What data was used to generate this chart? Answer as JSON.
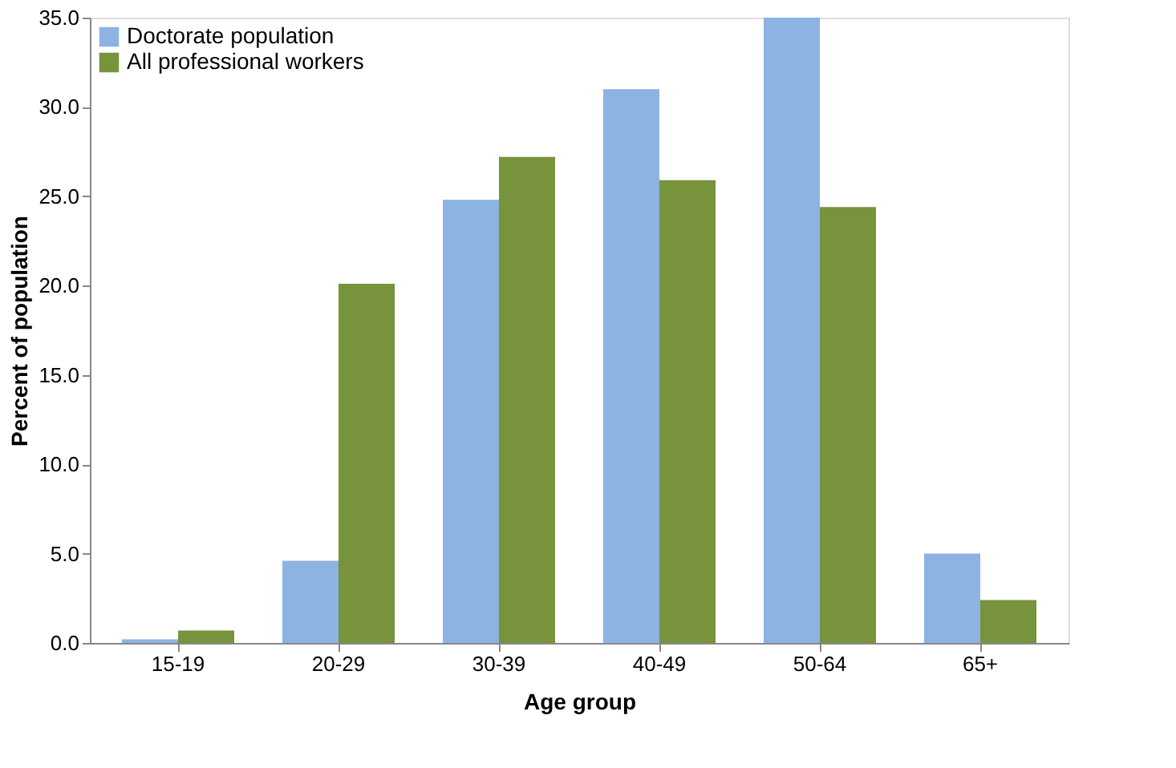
{
  "chart_data": {
    "type": "bar",
    "xlabel": "Age group",
    "ylabel": "Percent of population",
    "categories": [
      "15-19",
      "20-29",
      "30-39",
      "40-49",
      "50-64",
      "65+"
    ],
    "series": [
      {
        "name": "Doctorate population",
        "color": "#8db3e2",
        "values": [
          0.2,
          4.6,
          24.8,
          31.0,
          35.0,
          5.0
        ]
      },
      {
        "name": "All professional workers",
        "color": "#77933c",
        "values": [
          0.7,
          20.1,
          27.2,
          25.9,
          24.4,
          2.4
        ]
      }
    ],
    "ylim": [
      0,
      35
    ],
    "yticks": [
      {
        "value": 0,
        "label": "0.0"
      },
      {
        "value": 5,
        "label": "5.0"
      },
      {
        "value": 10,
        "label": "10.0"
      },
      {
        "value": 15,
        "label": "15.0"
      },
      {
        "value": 20,
        "label": "20.0"
      },
      {
        "value": 25,
        "label": "25.0"
      },
      {
        "value": 30,
        "label": "30.0"
      },
      {
        "value": 35,
        "label": "35.0"
      }
    ],
    "legend": "top left",
    "grid": false
  }
}
